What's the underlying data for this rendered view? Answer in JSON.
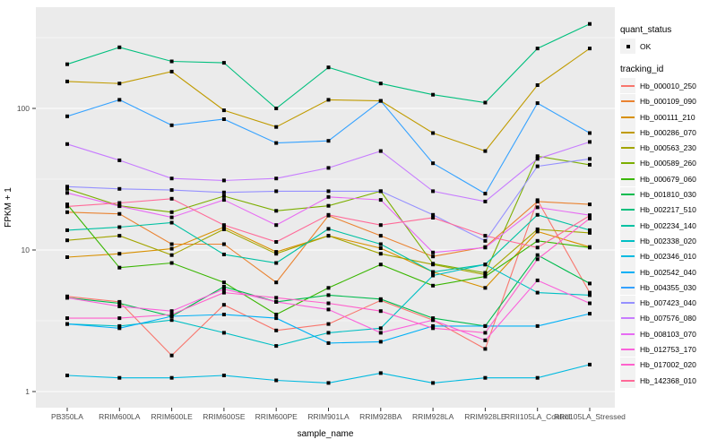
{
  "chart_data": {
    "type": "line",
    "title": "",
    "xlabel": "sample_name",
    "ylabel": "FPKM + 1",
    "y_scale": "log10",
    "y_ticks": [
      1,
      10,
      100
    ],
    "y_minor_ticks": [
      3.162,
      31.62,
      316.2
    ],
    "ylim": [
      0.77,
      520
    ],
    "grid": "on",
    "legend_position": "right",
    "panel_bg": "#EBEBEB",
    "grid_color": "#FFFFFF",
    "marker": "black-square",
    "x_categories": [
      "PB350LA",
      "RRIM600LA",
      "RRIM600LE",
      "RRIM600SE",
      "RRIM600PE",
      "RRIM901LA",
      "RRIM928BA",
      "RRIM928LA",
      "RRIM928LE",
      "RRII105LA_Control",
      "RRII105LA_Stressed"
    ],
    "legend": {
      "quant_title": "quant_status",
      "quant_items": [
        {
          "label": "OK",
          "marker_color": "#000000"
        }
      ],
      "series_title": "tracking_id"
    },
    "series": [
      {
        "name": "Hb_000010_250",
        "color": "#F8766D",
        "values": [
          4.7,
          4.3,
          1.8,
          4.1,
          2.7,
          3.0,
          4.4,
          3.2,
          2.0,
          22.5,
          5.0
        ]
      },
      {
        "name": "Hb_000109_090",
        "color": "#EA8331",
        "values": [
          18.5,
          18.0,
          11.0,
          11.0,
          5.9,
          17.5,
          12.6,
          9.0,
          10.5,
          22.0,
          21.0
        ]
      },
      {
        "name": "Hb_000111_210",
        "color": "#D89000",
        "values": [
          8.9,
          9.4,
          10.2,
          14.5,
          9.7,
          12.6,
          10.3,
          7.0,
          5.4,
          13.5,
          10.5
        ]
      },
      {
        "name": "Hb_000286_070",
        "color": "#C09B00",
        "values": [
          155,
          150,
          182,
          97,
          74,
          115,
          113,
          67,
          50,
          146,
          265
        ]
      },
      {
        "name": "Hb_000563_230",
        "color": "#A3A500",
        "values": [
          11.7,
          12.6,
          9.2,
          14.0,
          9.4,
          12.6,
          9.4,
          7.9,
          6.7,
          14.0,
          13.2
        ]
      },
      {
        "name": "Hb_000589_260",
        "color": "#7CAE00",
        "values": [
          27,
          20.5,
          18.5,
          24,
          18.9,
          20.5,
          26,
          8.0,
          6.9,
          46,
          40
        ]
      },
      {
        "name": "Hb_000679_060",
        "color": "#39B600",
        "values": [
          21,
          7.5,
          8.1,
          5.9,
          3.5,
          5.4,
          7.9,
          5.6,
          6.5,
          11.6,
          10.4
        ]
      },
      {
        "name": "Hb_001810_030",
        "color": "#00BB4E",
        "values": [
          4.6,
          4.2,
          3.4,
          5.5,
          4.3,
          4.8,
          4.5,
          3.3,
          2.9,
          9.2,
          5.8
        ]
      },
      {
        "name": "Hb_002217_510",
        "color": "#00BF7D",
        "values": [
          205,
          270,
          215,
          210,
          100,
          195,
          150,
          125,
          110,
          265,
          395
        ]
      },
      {
        "name": "Hb_002234_140",
        "color": "#00C1A3",
        "values": [
          13.8,
          14.5,
          15.6,
          9.3,
          8.1,
          14.1,
          11.0,
          7.0,
          7.9,
          17.7,
          13.8
        ]
      },
      {
        "name": "Hb_002338_020",
        "color": "#00BFC4",
        "values": [
          3.0,
          2.9,
          3.2,
          2.6,
          2.1,
          2.6,
          2.8,
          6.6,
          7.9,
          5.0,
          4.8
        ]
      },
      {
        "name": "Hb_002346_010",
        "color": "#00BAE0",
        "values": [
          1.3,
          1.25,
          1.25,
          1.3,
          1.2,
          1.15,
          1.35,
          1.15,
          1.25,
          1.25,
          1.55
        ]
      },
      {
        "name": "Hb_002542_040",
        "color": "#00B0F6",
        "values": [
          3.0,
          2.8,
          3.4,
          3.5,
          3.3,
          2.2,
          2.25,
          2.9,
          2.9,
          2.9,
          3.55
        ]
      },
      {
        "name": "Hb_004355_030",
        "color": "#35A2FF",
        "values": [
          88,
          115,
          76,
          84,
          57,
          59,
          113,
          41,
          25,
          109,
          67
        ]
      },
      {
        "name": "Hb_007423_040",
        "color": "#9590FF",
        "values": [
          28,
          27,
          26.5,
          25.5,
          26,
          26,
          26,
          17.7,
          11.6,
          39,
          44
        ]
      },
      {
        "name": "Hb_007576_080",
        "color": "#C77CFF",
        "values": [
          56,
          43,
          32,
          31,
          32,
          38,
          50,
          26,
          22,
          44,
          58
        ]
      },
      {
        "name": "Hb_008103_070",
        "color": "#E76BF3",
        "values": [
          25.3,
          20.4,
          17.0,
          22.6,
          15.0,
          23.7,
          22.6,
          9.6,
          10.4,
          20.0,
          17.6
        ]
      },
      {
        "name": "Hb_012753_170",
        "color": "#FA62DB",
        "values": [
          4.6,
          4.0,
          3.7,
          5.3,
          4.3,
          3.8,
          2.6,
          3.2,
          2.3,
          6.1,
          4.2
        ]
      },
      {
        "name": "Hb_017002_020",
        "color": "#FF61CC",
        "values": [
          3.3,
          3.3,
          3.5,
          5.0,
          4.6,
          4.2,
          3.7,
          2.8,
          2.6,
          8.6,
          16.7
        ]
      },
      {
        "name": "Hb_142368_010",
        "color": "#FF6A98",
        "values": [
          20.3,
          21.5,
          23.0,
          15.0,
          11.4,
          17.7,
          15.0,
          16.9,
          12.6,
          10.4,
          17.5
        ]
      }
    ]
  }
}
